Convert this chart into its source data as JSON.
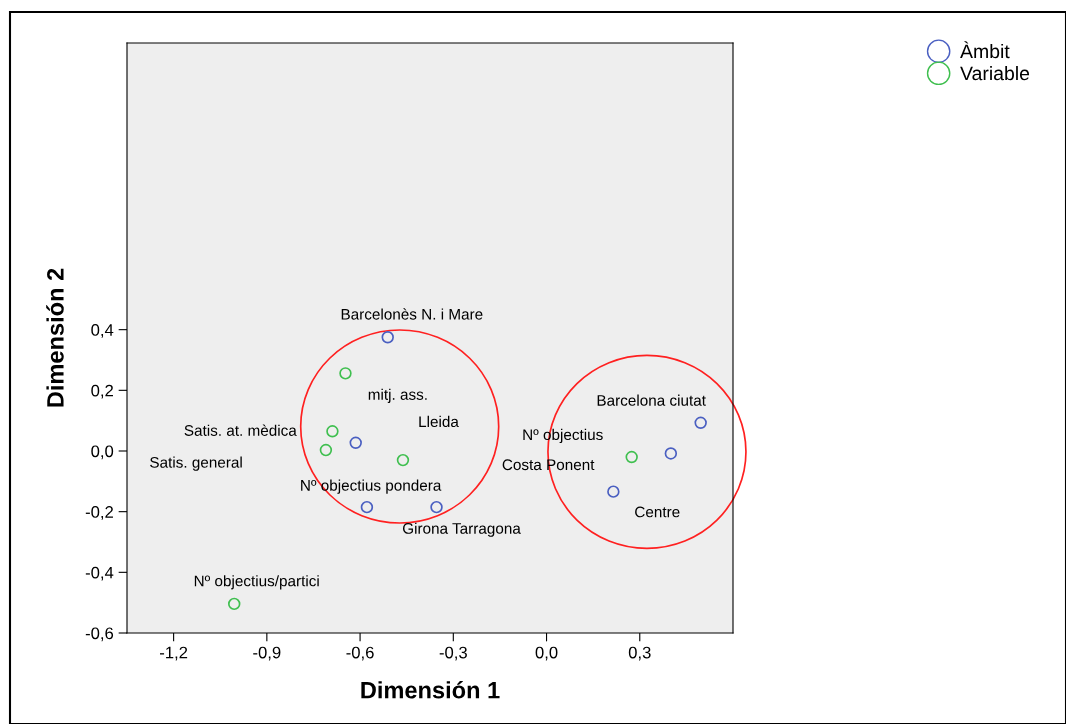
{
  "chart_data": {
    "type": "scatter",
    "xlabel": "Dimensión 1",
    "ylabel": "Dimensión 2",
    "xlim": [
      -1.35,
      0.6
    ],
    "ylim": [
      -0.6,
      1.345
    ],
    "xticks": [
      {
        "value": -1.2,
        "label": "-1,2"
      },
      {
        "value": -0.9,
        "label": "-0,9"
      },
      {
        "value": -0.6,
        "label": "-0,6"
      },
      {
        "value": -0.3,
        "label": "-0,3"
      },
      {
        "value": 0.0,
        "label": "0,0"
      },
      {
        "value": 0.3,
        "label": "0,3"
      }
    ],
    "yticks": [
      {
        "value": -0.6,
        "label": "-0,6"
      },
      {
        "value": -0.4,
        "label": "-0,4"
      },
      {
        "value": -0.2,
        "label": "-0,2"
      },
      {
        "value": 0.0,
        "label": "0,0"
      },
      {
        "value": 0.2,
        "label": "0,2"
      },
      {
        "value": 0.4,
        "label": "0,4"
      }
    ],
    "grid": false,
    "legend": "top right",
    "marker": "circle",
    "series": [
      {
        "name": "Àmbit",
        "color": "#4a5fc1",
        "x": [
          -0.511,
          -0.614,
          -0.578,
          -0.354,
          0.215,
          0.4,
          0.496
        ],
        "values": [
          0.375,
          0.027,
          -0.185,
          -0.185,
          -0.134,
          -0.008,
          0.093
        ]
      },
      {
        "name": "Variable",
        "color": "#3fbf4f",
        "x": [
          -0.647,
          -0.689,
          -0.71,
          -0.462,
          0.274,
          -1.005
        ],
        "values": [
          0.256,
          0.065,
          0.003,
          -0.03,
          -0.02,
          -0.504
        ]
      }
    ],
    "annotations": [
      "Barcelonès N. i Mare",
      "mitj. ass.",
      "Lleida",
      "Satis. at. mèdica",
      "Satis. general",
      "Nº objectius pondera",
      "Girona Tarragona",
      "Nº objectius/partici",
      "Barcelona ciutat",
      "Nº objectius",
      "Costa Ponent",
      "Centre"
    ]
  }
}
